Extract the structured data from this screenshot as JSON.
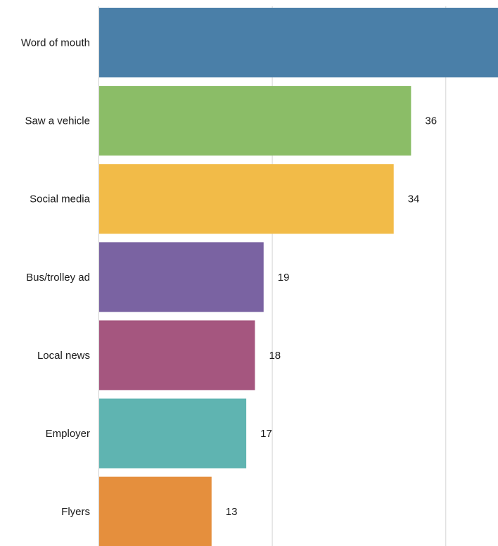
{
  "chart_data": {
    "type": "bar",
    "orientation": "horizontal",
    "categories": [
      "Word of mouth",
      "Saw a vehicle",
      "Social media",
      "Bus/trolley ad",
      "Local news",
      "Employer",
      "Flyers"
    ],
    "values": [
      48,
      36,
      34,
      19,
      18,
      17,
      13
    ],
    "data_labels": [
      "",
      "36",
      "34",
      "19",
      "18",
      "17",
      "13"
    ],
    "colors": [
      "#4a7fa8",
      "#8bbd67",
      "#f2bb48",
      "#7a63a2",
      "#a5567f",
      "#5fb4b1",
      "#e58f3d"
    ],
    "title": "",
    "xlabel": "",
    "ylabel": "",
    "xlim": [
      0,
      46
    ],
    "grid": true,
    "gridlines_at": [
      20,
      40
    ]
  }
}
